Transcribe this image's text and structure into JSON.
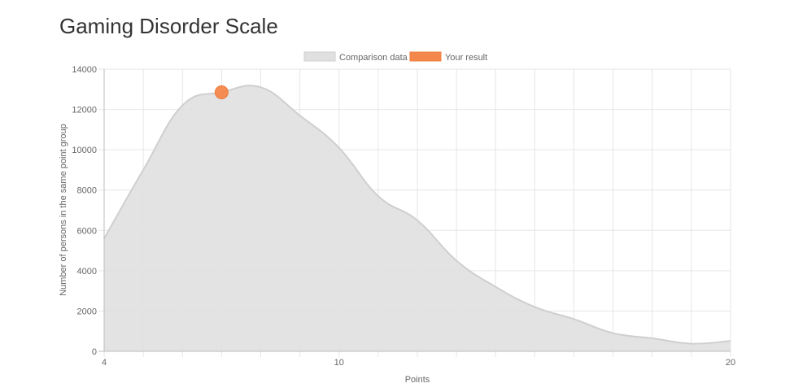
{
  "page": {
    "title": "Gaming Disorder Scale"
  },
  "chart_data": {
    "type": "area",
    "xlabel": "Points",
    "ylabel": "Number of persons in the same point group",
    "xlim": [
      4,
      20
    ],
    "ylim": [
      0,
      14000
    ],
    "x_ticks": [
      4,
      10,
      20
    ],
    "y_ticks": [
      0,
      2000,
      4000,
      6000,
      8000,
      10000,
      12000,
      14000
    ],
    "grid": true,
    "legend_position": "top-center",
    "series": [
      {
        "name": "Comparison data",
        "color": "#e0e0e0",
        "stroke": "#cfcfcf",
        "x": [
          4,
          5,
          6,
          7,
          8,
          9,
          10,
          11,
          12,
          13,
          14,
          15,
          16,
          17,
          18,
          19,
          20
        ],
        "y": [
          5600,
          9000,
          12200,
          12850,
          13100,
          11700,
          10100,
          7700,
          6500,
          4500,
          3200,
          2200,
          1600,
          900,
          650,
          380,
          520
        ]
      }
    ],
    "highlight": {
      "name": "Your result",
      "color": "#f4874b",
      "x": 7,
      "y": 12850
    }
  }
}
